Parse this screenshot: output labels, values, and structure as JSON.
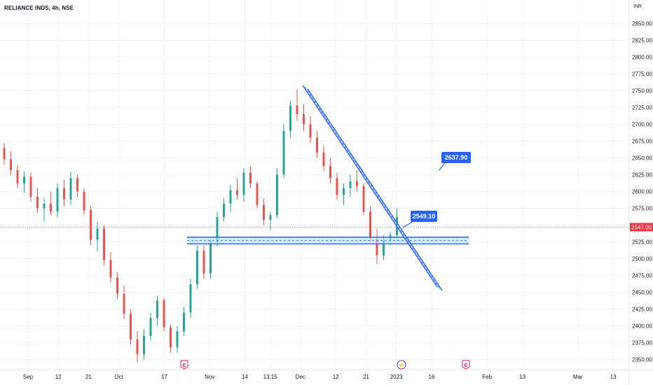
{
  "header": {
    "title": "RELIANCE INDS, 4h, NSE"
  },
  "colors": {
    "up": "#26a69a",
    "down": "#ef5350",
    "pattern_line": "#2962ff",
    "pattern_fill": "#bbdefb",
    "callout": "#2962ff",
    "last_price_tag": "#f23645",
    "grid": "#f0f3fa",
    "event_earnings": "#e91e63",
    "event_dividend": "#9c27b0"
  },
  "chart_data": {
    "type": "candlestick",
    "symbol": "RELIANCE INDS",
    "interval": "4h",
    "exchange": "NSE",
    "currency": "INR",
    "y_range": [
      2335,
      2885
    ],
    "y_ticks": [
      2350,
      2375,
      2400,
      2425,
      2450,
      2475,
      2500,
      2525,
      2550,
      2575,
      2600,
      2625,
      2650,
      2675,
      2700,
      2725,
      2750,
      2775,
      2800,
      2825,
      2850
    ],
    "x_labels": [
      {
        "label": "Sep",
        "index": 4
      },
      {
        "label": "12",
        "index": 10
      },
      {
        "label": "21",
        "index": 16
      },
      {
        "label": "Oct",
        "index": 22
      },
      {
        "label": "17",
        "index": 31
      },
      {
        "label": "Nov",
        "index": 40
      },
      {
        "label": "14",
        "index": 47
      },
      {
        "label": "13:15",
        "index": 52
      },
      {
        "label": "Dec",
        "index": 58
      },
      {
        "label": "12",
        "index": 65
      },
      {
        "label": "21",
        "index": 71
      },
      {
        "label": "2023",
        "index": 77
      },
      {
        "label": "16",
        "index": 84
      },
      {
        "label": "Feb",
        "index": 95
      },
      {
        "label": "13",
        "index": 102
      },
      {
        "label": "Mar",
        "index": 113
      },
      {
        "label": "13",
        "index": 120
      }
    ],
    "candles": [
      [
        2665,
        2672,
        2640,
        2648
      ],
      [
        2648,
        2660,
        2625,
        2632
      ],
      [
        2632,
        2640,
        2605,
        2612
      ],
      [
        2612,
        2630,
        2598,
        2622
      ],
      [
        2622,
        2628,
        2585,
        2592
      ],
      [
        2592,
        2605,
        2568,
        2575
      ],
      [
        2575,
        2590,
        2555,
        2582
      ],
      [
        2582,
        2600,
        2565,
        2570
      ],
      [
        2570,
        2612,
        2562,
        2605
      ],
      [
        2605,
        2618,
        2578,
        2588
      ],
      [
        2588,
        2630,
        2580,
        2620
      ],
      [
        2620,
        2625,
        2592,
        2600
      ],
      [
        2600,
        2605,
        2565,
        2572
      ],
      [
        2572,
        2578,
        2520,
        2528
      ],
      [
        2528,
        2555,
        2512,
        2545
      ],
      [
        2545,
        2550,
        2490,
        2498
      ],
      [
        2498,
        2510,
        2465,
        2472
      ],
      [
        2472,
        2480,
        2440,
        2448
      ],
      [
        2448,
        2460,
        2410,
        2418
      ],
      [
        2418,
        2425,
        2372,
        2380
      ],
      [
        2380,
        2392,
        2346,
        2358
      ],
      [
        2358,
        2395,
        2350,
        2385
      ],
      [
        2385,
        2420,
        2378,
        2412
      ],
      [
        2412,
        2445,
        2400,
        2438
      ],
      [
        2438,
        2442,
        2392,
        2398
      ],
      [
        2398,
        2402,
        2360,
        2368
      ],
      [
        2368,
        2400,
        2360,
        2392
      ],
      [
        2392,
        2428,
        2385,
        2420
      ],
      [
        2420,
        2470,
        2412,
        2462
      ],
      [
        2462,
        2520,
        2455,
        2512
      ],
      [
        2512,
        2520,
        2470,
        2478
      ],
      [
        2478,
        2530,
        2470,
        2525
      ],
      [
        2525,
        2570,
        2518,
        2562
      ],
      [
        2562,
        2590,
        2555,
        2582
      ],
      [
        2582,
        2610,
        2570,
        2602
      ],
      [
        2602,
        2620,
        2588,
        2595
      ],
      [
        2595,
        2635,
        2585,
        2628
      ],
      [
        2628,
        2638,
        2605,
        2612
      ],
      [
        2612,
        2615,
        2575,
        2580
      ],
      [
        2580,
        2590,
        2550,
        2558
      ],
      [
        2558,
        2570,
        2542,
        2565
      ],
      [
        2565,
        2635,
        2560,
        2625
      ],
      [
        2625,
        2700,
        2620,
        2690
      ],
      [
        2690,
        2735,
        2680,
        2728
      ],
      [
        2728,
        2752,
        2705,
        2715
      ],
      [
        2715,
        2730,
        2690,
        2700
      ],
      [
        2700,
        2712,
        2672,
        2680
      ],
      [
        2680,
        2690,
        2650,
        2658
      ],
      [
        2658,
        2668,
        2630,
        2638
      ],
      [
        2638,
        2650,
        2612,
        2620
      ],
      [
        2620,
        2628,
        2588,
        2595
      ],
      [
        2595,
        2612,
        2580,
        2605
      ],
      [
        2605,
        2625,
        2592,
        2615
      ],
      [
        2615,
        2632,
        2600,
        2608
      ],
      [
        2608,
        2612,
        2565,
        2570
      ],
      [
        2570,
        2578,
        2525,
        2530
      ],
      [
        2530,
        2545,
        2492,
        2505
      ],
      [
        2505,
        2535,
        2498,
        2528
      ],
      [
        2528,
        2540,
        2520,
        2535
      ],
      [
        2535,
        2575,
        2530,
        2562
      ]
    ],
    "horizontal_channel": {
      "upper": 2532,
      "lower": 2522
    },
    "descending_channel": [
      {
        "index": 0,
        "value": 2758
      },
      {
        "index": 59,
        "value": 2458
      }
    ],
    "callouts": [
      {
        "label": "2637.90",
        "value": 2637.9
      },
      {
        "label": "2549.10",
        "value": 2549.1
      }
    ],
    "last_price": {
      "label": "2547.00",
      "value": 2547.0
    },
    "events": [
      {
        "type": "earnings",
        "symbol": "E"
      },
      {
        "type": "dividend",
        "symbol": "⚡"
      },
      {
        "type": "earnings",
        "symbol": "E"
      }
    ]
  }
}
